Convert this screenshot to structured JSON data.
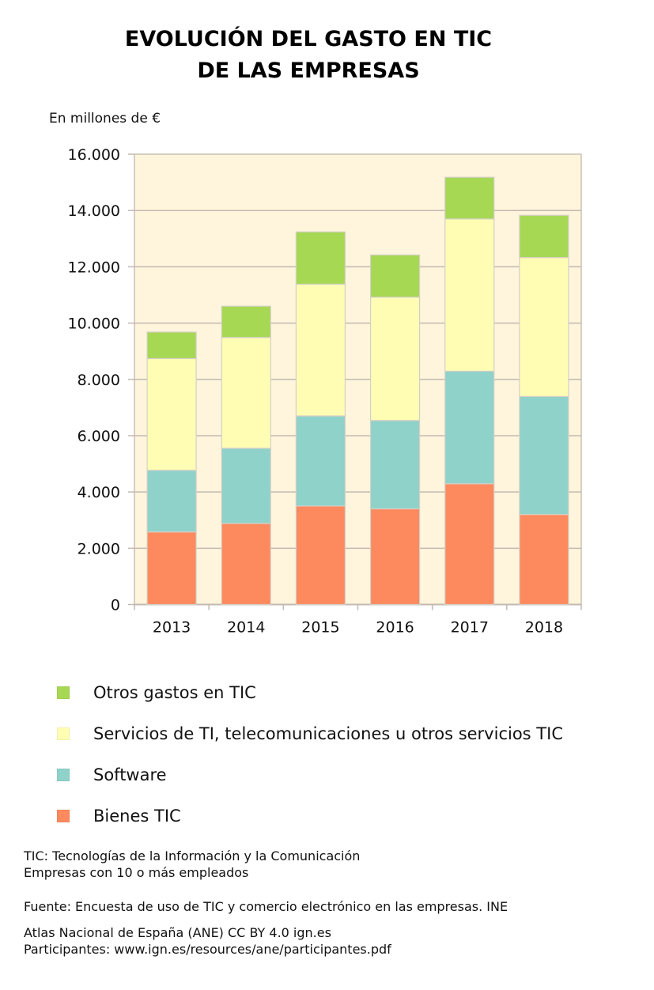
{
  "header": {
    "title_line1": "EVOLUCIÓN DEL GASTO EN TIC",
    "title_line2": "DE  LAS EMPRESAS",
    "unit_label": "En millones de €"
  },
  "chart_data": {
    "type": "bar",
    "stacked": true,
    "title": "EVOLUCIÓN DEL GASTO EN TIC DE LAS EMPRESAS",
    "xlabel": "",
    "ylabel": "En millones de €",
    "categories": [
      "2013",
      "2014",
      "2015",
      "2016",
      "2017",
      "2018"
    ],
    "ylim": [
      0,
      16000
    ],
    "yticks": [
      0,
      2000,
      4000,
      6000,
      8000,
      10000,
      12000,
      14000,
      16000
    ],
    "ytick_labels": [
      "0",
      "2.000",
      "4.000",
      "6.000",
      "8.000",
      "10.000",
      "12.000",
      "14.000",
      "16.000"
    ],
    "grid": true,
    "legend_position": "bottom",
    "series": [
      {
        "name": "Bienes TIC",
        "color": "#fd8a5e",
        "values": [
          2580,
          2880,
          3500,
          3400,
          4290,
          3200
        ]
      },
      {
        "name": "Software",
        "color": "#8ed2ca",
        "values": [
          2190,
          2670,
          3200,
          3140,
          4000,
          4190
        ]
      },
      {
        "name": "Servicios de TI, telecomunicaciones u otros servicios TIC",
        "color": "#fefdb3",
        "values": [
          3970,
          3940,
          4680,
          4380,
          5410,
          4940
        ]
      },
      {
        "name": "Otros gastos en TIC",
        "color": "#a6d854",
        "values": [
          940,
          1110,
          1860,
          1500,
          1480,
          1500
        ]
      }
    ],
    "plot_background": "#fef5dc"
  },
  "legend": [
    {
      "label": "Otros gastos en TIC",
      "color": "#a6d854"
    },
    {
      "label": "Servicios de TI, telecomunicaciones u otros servicios TIC",
      "color": "#fefdb3"
    },
    {
      "label": "Software",
      "color": "#8ed2ca"
    },
    {
      "label": "Bienes TIC",
      "color": "#fd8a5e"
    }
  ],
  "notes": {
    "line1": "TIC: Tecnologías de la Información y la Comunicación",
    "line2": "Empresas con 10 o más empleados",
    "source": "Fuente: Encuesta de uso de TIC y comercio electrónico en las empresas. INE",
    "credit": "Atlas Nacional de España (ANE) CC BY 4.0 ign.es",
    "participants": "Participantes: www.ign.es/resources/ane/participantes.pdf"
  }
}
